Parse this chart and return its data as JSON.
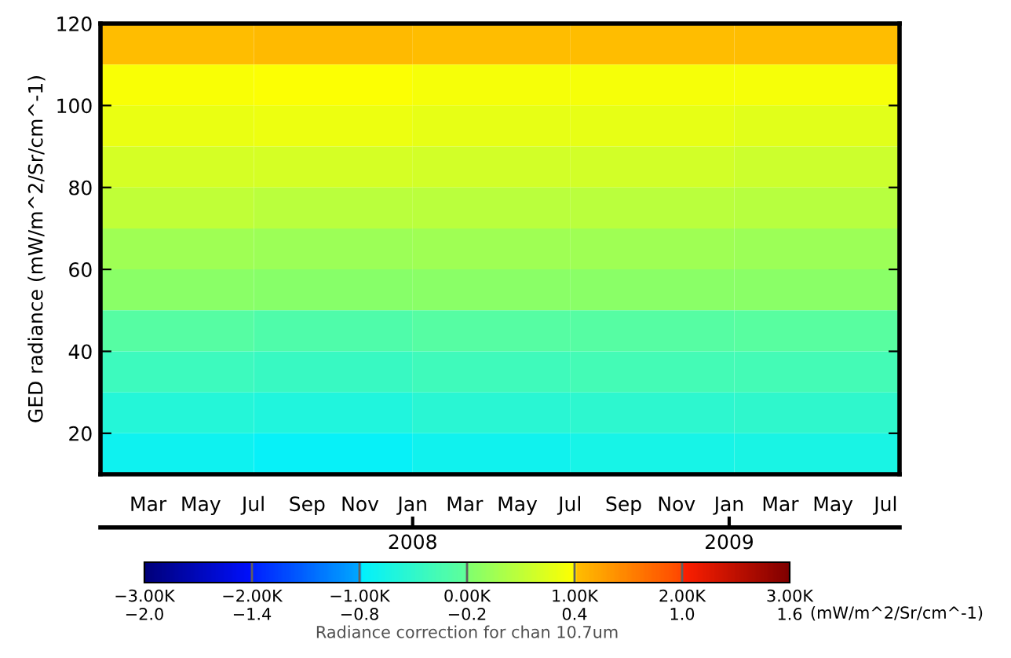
{
  "chart_data": {
    "type": "heatmap",
    "ylabel": "GED radiance (mW/m^2/Sr/cm^-1)",
    "clabel": "Radiance correction for chan 10.7um",
    "x": [
      "2007-04-01",
      "2007-10-01",
      "2008-04-01",
      "2008-10-01",
      "2009-04-15"
    ],
    "cells": [
      [
        0.41,
        0.43,
        0.41,
        0.41,
        0.41
      ],
      [
        0.37,
        0.38,
        0.36,
        0.36,
        0.35
      ],
      [
        0.3,
        0.32,
        0.28,
        0.28,
        0.26
      ],
      [
        0.2,
        0.2,
        0.18,
        0.18,
        0.16
      ],
      [
        0.1,
        0.08,
        0.08,
        0.08,
        0.06
      ],
      [
        -0.05,
        -0.06,
        -0.05,
        -0.05,
        -0.06
      ],
      [
        -0.15,
        -0.17,
        -0.15,
        -0.15,
        -0.15
      ],
      [
        -0.27,
        -0.3,
        -0.27,
        -0.26,
        -0.25
      ],
      [
        -0.42,
        -0.45,
        -0.4,
        -0.38,
        -0.37
      ],
      [
        -0.57,
        -0.6,
        -0.55,
        -0.52,
        -0.5
      ],
      [
        -0.72,
        -0.76,
        -0.7,
        -0.66,
        -0.64
      ]
    ],
    "xlim": [
      "2007-01-05",
      "2009-07-17"
    ],
    "xticks": [
      {
        "value": "2007-03-01",
        "label": "Mar"
      },
      {
        "value": "2007-05-01",
        "label": "May"
      },
      {
        "value": "2007-07-01",
        "label": "Jul"
      },
      {
        "value": "2007-09-01",
        "label": "Sep"
      },
      {
        "value": "2007-11-01",
        "label": "Nov"
      },
      {
        "value": "2008-01-01",
        "label": "Jan"
      },
      {
        "value": "2008-03-01",
        "label": "Mar"
      },
      {
        "value": "2008-05-01",
        "label": "May"
      },
      {
        "value": "2008-07-01",
        "label": "Jul"
      },
      {
        "value": "2008-09-01",
        "label": "Sep"
      },
      {
        "value": "2008-11-01",
        "label": "Nov"
      },
      {
        "value": "2009-01-01",
        "label": "Jan"
      },
      {
        "value": "2009-03-01",
        "label": "Mar"
      },
      {
        "value": "2009-05-01",
        "label": "May"
      },
      {
        "value": "2009-07-01",
        "label": "Jul"
      }
    ],
    "ylim": [
      10,
      120
    ],
    "yticks": [
      20,
      40,
      60,
      80,
      100,
      120
    ],
    "clim": [
      -2.0,
      1.6
    ],
    "cticks": [
      {
        "value": -2.0,
        "label": "−3.00K\n−2.0"
      },
      {
        "value": -1.4,
        "label": "−2.00K\n−1.4"
      },
      {
        "value": -0.8,
        "label": "−1.00K\n−0.8"
      },
      {
        "value": -0.2,
        "label": "0.00K\n−0.2"
      },
      {
        "value": 0.4,
        "label": "1.00K\n0.4"
      },
      {
        "value": 1.0,
        "label": "2.00K\n1.0"
      },
      {
        "value": 1.6,
        "label": "3.00K\n1.6"
      }
    ],
    "x2lim": [
      "2007-01-05",
      "2009-07-17"
    ],
    "x2ticks": [
      {
        "value": "2008-01-01",
        "label": "2008"
      },
      {
        "value": "2009-01-01",
        "label": "2009"
      }
    ],
    "annotations": [
      "(mW/m^2/Sr/cm^-1)"
    ],
    "grid": false
  }
}
